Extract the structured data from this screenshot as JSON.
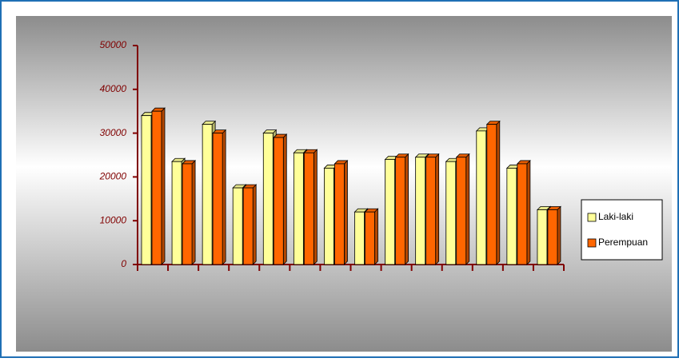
{
  "chart_data": {
    "type": "bar3d",
    "categories": [
      null,
      null,
      null,
      null,
      null,
      null,
      null,
      null,
      null,
      null,
      null,
      null,
      null,
      null
    ],
    "series": [
      {
        "name": "Laki-laki",
        "color": "#ffff99",
        "values": [
          34000,
          23500,
          32000,
          17500,
          30000,
          25500,
          22000,
          12000,
          24000,
          24500,
          23500,
          30500,
          22000,
          12500
        ]
      },
      {
        "name": "Perempuan",
        "color": "#ff6600",
        "values": [
          35000,
          23000,
          30000,
          17500,
          29000,
          25500,
          23000,
          12000,
          24500,
          24500,
          24500,
          32000,
          23000,
          12500
        ]
      }
    ],
    "ylim": [
      0,
      50000
    ],
    "yticks": [
      0,
      10000,
      20000,
      30000,
      40000,
      50000
    ],
    "axis_color": "#800000",
    "legend": "right"
  }
}
